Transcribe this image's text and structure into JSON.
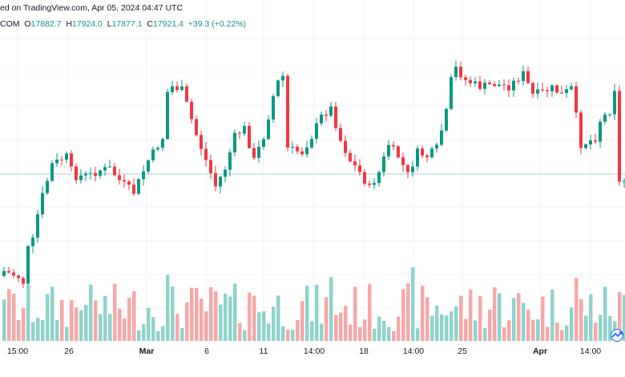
{
  "header": {
    "attribution": "ed on TradingView.com, Apr 05, 2024 04:47 UTC"
  },
  "ohlc": {
    "symbol": "COM",
    "o_label": "O",
    "o_value": "17882.7",
    "h_label": "H",
    "h_value": "17924.0",
    "l_label": "L",
    "l_value": "17877.1",
    "c_label": "C",
    "c_value": "17921.4",
    "change": "+39.3 (+0.22%)"
  },
  "colors": {
    "up": "#089981",
    "down": "#f23645",
    "vol_up": "#8fd3cb",
    "vol_down": "#f7a7a8",
    "grid": "#f0f3fa",
    "price_line": "#b2dfdb"
  },
  "chart_data": {
    "type": "candlestick",
    "x_tick_labels": [
      "15:00",
      "26",
      "Mar",
      "6",
      "11",
      "14:00",
      "18",
      "14:00",
      "25",
      "Apr",
      "14:00"
    ],
    "bold_tick_labels": [
      "Mar",
      "Apr"
    ],
    "current_price": 17921.4,
    "grid": true
  }
}
